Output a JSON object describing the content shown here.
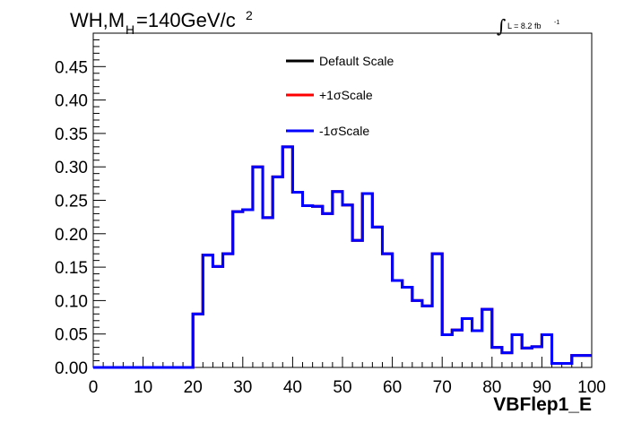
{
  "chart_data": {
    "type": "line",
    "title": {
      "main": "WH,M",
      "sub": "H",
      "rest": "=140GeV/c",
      "sup": "2"
    },
    "lumi": {
      "symbol": "∫",
      "text": "L = 8.2 fb",
      "sup": "-1"
    },
    "xlabel": "VBFlep1_E",
    "ylabel": "",
    "xlim": [
      0,
      100
    ],
    "ylim": [
      0,
      0.5
    ],
    "x_ticks": [
      "0",
      "10",
      "20",
      "30",
      "40",
      "50",
      "60",
      "70",
      "80",
      "90",
      "100"
    ],
    "y_ticks": [
      "0.00",
      "0.05",
      "0.10",
      "0.15",
      "0.20",
      "0.25",
      "0.30",
      "0.35",
      "0.40",
      "0.45"
    ],
    "bin_width": 2,
    "bin_edges_start": 0,
    "legend_position": "top-center",
    "series": [
      {
        "name": "Default Scale",
        "color": "#000000",
        "values": [
          0,
          0,
          0,
          0,
          0,
          0,
          0,
          0,
          0,
          0,
          0.08,
          0.168,
          0.151,
          0.17,
          0.233,
          0.236,
          0.3,
          0.224,
          0.285,
          0.33,
          0.262,
          0.242,
          0.241,
          0.23,
          0.263,
          0.243,
          0.19,
          0.26,
          0.21,
          0.17,
          0.13,
          0.12,
          0.1,
          0.092,
          0.17,
          0.049,
          0.056,
          0.073,
          0.055,
          0.087,
          0.03,
          0.022,
          0.049,
          0.029,
          0.031,
          0.049,
          0.006,
          0.006,
          0.018,
          0.018
        ]
      },
      {
        "name": "+1σScale",
        "color": "#ff0000",
        "values": [
          0,
          0,
          0,
          0,
          0,
          0,
          0,
          0,
          0,
          0,
          0.08,
          0.168,
          0.151,
          0.17,
          0.233,
          0.236,
          0.3,
          0.224,
          0.285,
          0.33,
          0.262,
          0.242,
          0.241,
          0.23,
          0.263,
          0.243,
          0.19,
          0.26,
          0.21,
          0.17,
          0.13,
          0.12,
          0.1,
          0.092,
          0.17,
          0.049,
          0.056,
          0.073,
          0.055,
          0.087,
          0.03,
          0.022,
          0.049,
          0.029,
          0.031,
          0.049,
          0.006,
          0.006,
          0.018,
          0.018
        ]
      },
      {
        "name": "-1σScale",
        "color": "#0000ff",
        "values": [
          0,
          0,
          0,
          0,
          0,
          0,
          0,
          0,
          0,
          0,
          0.08,
          0.168,
          0.151,
          0.17,
          0.233,
          0.236,
          0.3,
          0.224,
          0.285,
          0.33,
          0.262,
          0.242,
          0.241,
          0.23,
          0.263,
          0.243,
          0.19,
          0.26,
          0.21,
          0.17,
          0.13,
          0.12,
          0.1,
          0.092,
          0.17,
          0.049,
          0.056,
          0.073,
          0.055,
          0.087,
          0.03,
          0.022,
          0.049,
          0.029,
          0.031,
          0.049,
          0.006,
          0.006,
          0.018,
          0.018
        ]
      }
    ]
  }
}
